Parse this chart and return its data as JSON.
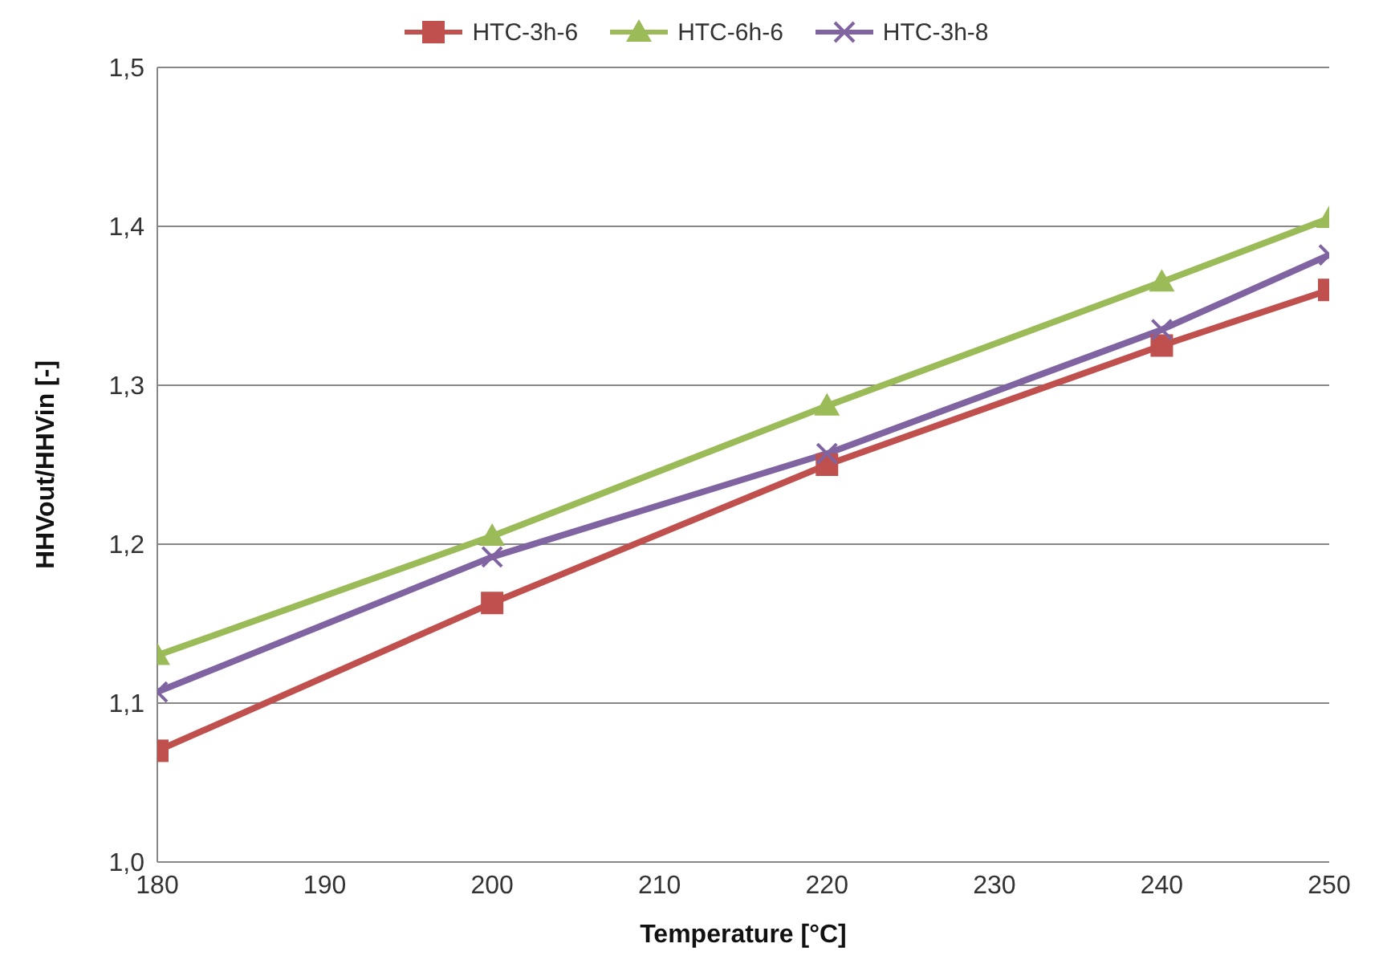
{
  "chart_data": {
    "type": "line",
    "xlabel": "Temperature [°C]",
    "ylabel": "HHVout/HHVin [-]",
    "x": [
      180,
      200,
      220,
      240,
      250
    ],
    "series": [
      {
        "name": "HTC-3h-6",
        "color": "#c0504d",
        "marker": "square",
        "values": [
          1.07,
          1.163,
          1.25,
          1.325,
          1.36
        ]
      },
      {
        "name": "HTC-6h-6",
        "color": "#9bbb59",
        "marker": "triangle",
        "values": [
          1.13,
          1.205,
          1.287,
          1.365,
          1.405
        ]
      },
      {
        "name": "HTC-3h-8",
        "color": "#8064a2",
        "marker": "cross",
        "values": [
          1.107,
          1.192,
          1.257,
          1.335,
          1.382
        ]
      }
    ],
    "xlim": [
      180,
      250
    ],
    "xticks": [
      180,
      190,
      200,
      210,
      220,
      230,
      240,
      250
    ],
    "ylim": [
      1.0,
      1.5
    ],
    "yticks": [
      {
        "value": 1.0,
        "label": "1,0"
      },
      {
        "value": 1.1,
        "label": "1,1"
      },
      {
        "value": 1.2,
        "label": "1,2"
      },
      {
        "value": 1.3,
        "label": "1,3"
      },
      {
        "value": 1.4,
        "label": "1,4"
      },
      {
        "value": 1.5,
        "label": "1,5"
      }
    ],
    "grid": "y",
    "legend": "top",
    "line_style": "solid"
  }
}
